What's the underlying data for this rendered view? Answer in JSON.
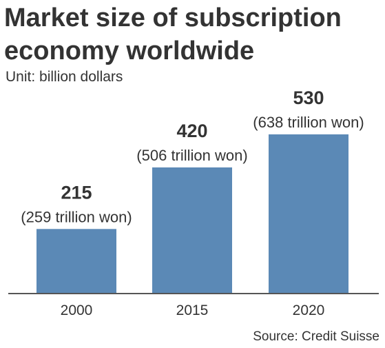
{
  "chart_data": {
    "type": "bar",
    "title": "Market size of subscription economy worldwide",
    "unit": "Unit: billion dollars",
    "source": "Source: Credit Suisse",
    "categories": [
      "2000",
      "2015",
      "2020"
    ],
    "values": [
      215,
      420,
      530
    ],
    "value_labels": [
      "215",
      "420",
      "530"
    ],
    "sub_labels": [
      "(259 trillion won)",
      "(506 trillion won)",
      "(638 trillion won)"
    ],
    "ylim": [
      0,
      530
    ],
    "grid": false,
    "bar_color": "#5b89b6",
    "axis_color": "#555555"
  }
}
